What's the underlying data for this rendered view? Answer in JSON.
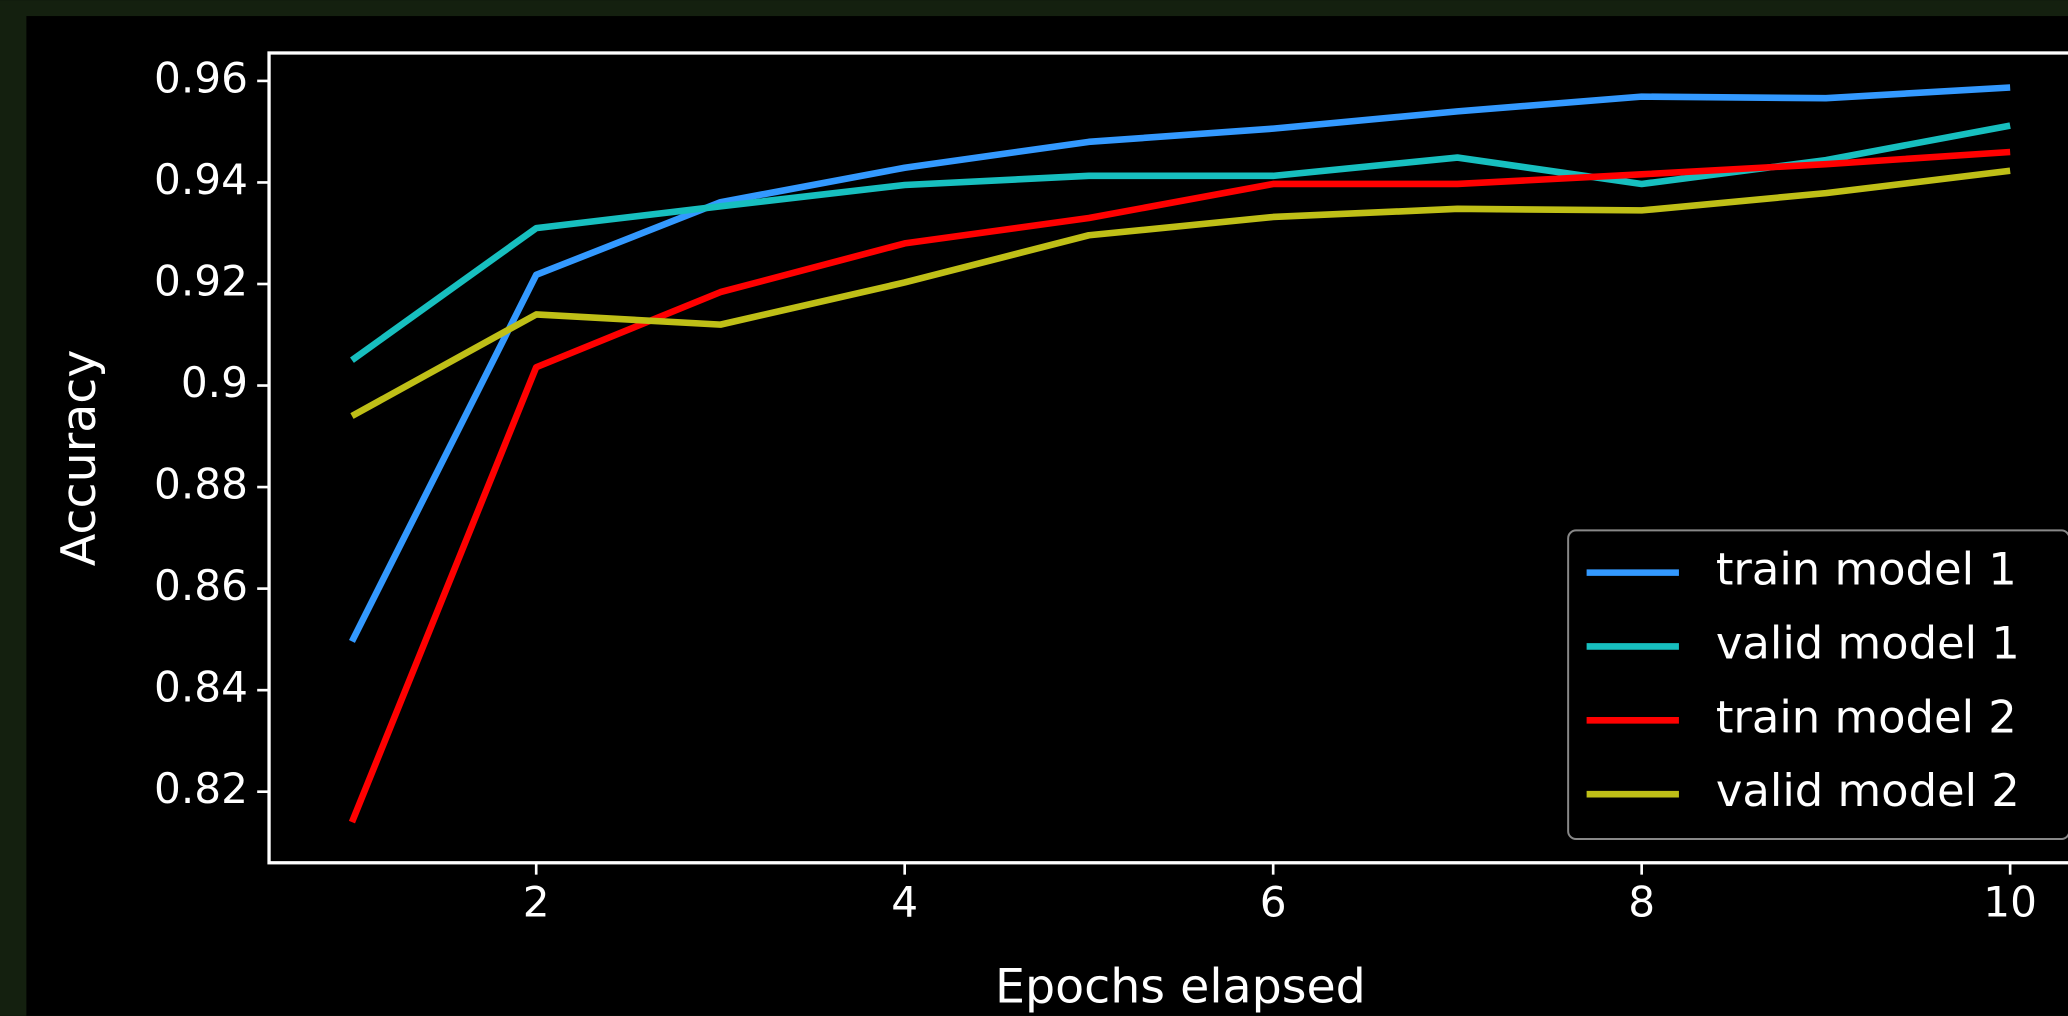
{
  "chart_data": {
    "type": "line",
    "x_label": "Epochs elapsed",
    "y_label": "Accuracy",
    "x": [
      1,
      2,
      3,
      4,
      5,
      6,
      7,
      8,
      9,
      10
    ],
    "series": [
      {
        "name": "train model 1",
        "color": "#3399ff",
        "values": [
          0.8496,
          0.9218,
          0.9361,
          0.9429,
          0.948,
          0.9506,
          0.954,
          0.9569,
          0.9566,
          0.9587
        ]
      },
      {
        "name": "valid model 1",
        "color": "#17bfbf",
        "values": [
          0.905,
          0.931,
          0.9353,
          0.9395,
          0.9413,
          0.9413,
          0.9449,
          0.9397,
          0.9444,
          0.9512
        ]
      },
      {
        "name": "train model 2",
        "color": "#ff0000",
        "values": [
          0.814,
          0.9036,
          0.9184,
          0.928,
          0.933,
          0.9397,
          0.9397,
          0.9416,
          0.9436,
          0.946
        ]
      },
      {
        "name": "valid model 2",
        "color": "#bfbf17",
        "values": [
          0.894,
          0.914,
          0.912,
          0.9203,
          0.9296,
          0.9332,
          0.9348,
          0.9345,
          0.9379,
          0.9423
        ]
      }
    ],
    "xlim": [
      0.55,
      10.45
    ],
    "xticks": [
      2,
      4,
      6,
      8,
      10
    ],
    "ylim": [
      0.806,
      0.9655
    ],
    "yticks": [
      0.82,
      0.84,
      0.86,
      0.88,
      0.9,
      0.92,
      0.94,
      0.96
    ],
    "legend": "lower right"
  }
}
